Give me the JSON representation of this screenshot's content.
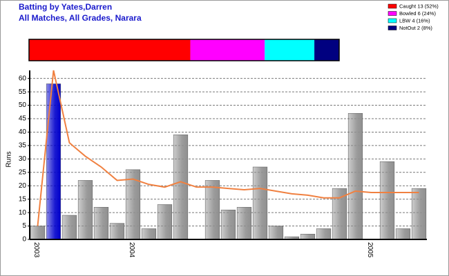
{
  "chart_data": {
    "type": "bar",
    "title": "Batting by Yates,Darren",
    "subtitle": "All Matches, All Grades, Narara",
    "y_label": "Runs",
    "breakdown": [
      {
        "name": "Caught 13 (52%)",
        "value": 52,
        "color": "#ff0000"
      },
      {
        "name": "Bowled 6 (24%)",
        "value": 24,
        "color": "#ff00ff"
      },
      {
        "name": "LBW 4 (16%)",
        "value": 16,
        "color": "#00ffff"
      },
      {
        "name": "NotOut 2 (8%)",
        "value": 8,
        "color": "#000080"
      }
    ],
    "categories": [
      "2003",
      null,
      null,
      null,
      null,
      null,
      "2004",
      null,
      null,
      null,
      null,
      null,
      null,
      null,
      null,
      null,
      null,
      null,
      null,
      null,
      null,
      "2005",
      null,
      null,
      null
    ],
    "values": [
      5,
      58,
      9,
      22,
      12,
      6,
      26,
      4,
      13,
      39,
      0,
      22,
      11,
      12,
      27,
      5,
      1,
      2,
      4,
      19,
      47,
      0,
      29,
      4,
      19
    ],
    "colors": [
      "#909090",
      "#0000cc",
      "#909090",
      "#909090",
      "#909090",
      "#909090",
      "#909090",
      "#909090",
      "#909090",
      "#909090",
      "#909090",
      "#909090",
      "#909090",
      "#909090",
      "#909090",
      "#909090",
      "#909090",
      "#909090",
      "#909090",
      "#909090",
      "#909090",
      "#909090",
      "#909090",
      "#909090",
      "#909090"
    ],
    "average": {
      "color": "#f08040",
      "values": [
        5,
        63,
        36,
        31,
        27,
        22,
        22.5,
        20.5,
        19.5,
        21.5,
        19.5,
        19.5,
        19,
        18.5,
        19,
        18,
        17,
        16.5,
        15.5,
        15.5,
        18,
        17.5,
        17.5,
        17.5,
        17.5
      ]
    },
    "ylim": [
      0,
      63
    ],
    "yticks": [
      0,
      5,
      10,
      15,
      20,
      25,
      30,
      35,
      40,
      45,
      50,
      55,
      60
    ],
    "grid": true
  }
}
